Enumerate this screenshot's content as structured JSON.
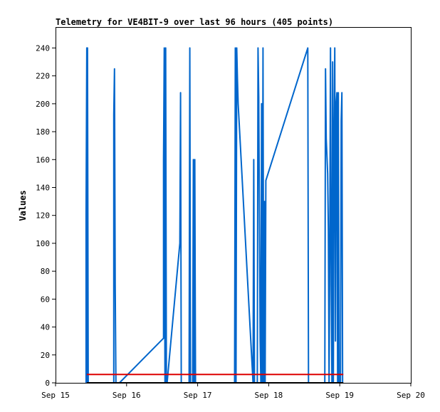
{
  "chart_data": {
    "type": "line",
    "title": "Telemetry for VE4BIT-9 over last 96 hours (405 points)",
    "xlabel": "",
    "ylabel": "Values",
    "x_ticks": [
      "Sep 15",
      "Sep 16",
      "Sep 17",
      "Sep 18",
      "Sep 19",
      "Sep 20"
    ],
    "xlim": [
      0,
      5
    ],
    "ylim": [
      0,
      255
    ],
    "y_ticks": [
      0,
      20,
      40,
      60,
      80,
      100,
      120,
      140,
      160,
      180,
      200,
      220,
      240
    ],
    "grid": false,
    "legend": "none",
    "series": [
      {
        "color": "#0066cc",
        "points": [
          [
            0.43,
            0
          ],
          [
            0.43,
            120
          ],
          [
            0.44,
            240
          ],
          [
            0.45,
            0
          ],
          [
            0.45,
            240
          ],
          [
            0.46,
            0
          ],
          [
            0.82,
            0
          ],
          [
            0.82,
            192
          ],
          [
            0.83,
            225
          ],
          [
            0.84,
            70
          ],
          [
            0.85,
            0
          ],
          [
            0.9,
            0
          ],
          [
            1.52,
            32
          ],
          [
            1.52,
            160
          ],
          [
            1.53,
            240
          ],
          [
            1.54,
            0
          ],
          [
            1.55,
            240
          ],
          [
            1.56,
            0
          ],
          [
            1.57,
            0
          ],
          [
            1.75,
            100
          ],
          [
            1.76,
            208
          ],
          [
            1.77,
            0
          ],
          [
            1.88,
            0
          ],
          [
            1.89,
            240
          ],
          [
            1.9,
            0
          ],
          [
            1.93,
            0
          ],
          [
            1.94,
            160
          ],
          [
            1.95,
            0
          ],
          [
            1.96,
            160
          ],
          [
            1.97,
            0
          ],
          [
            2.52,
            0
          ],
          [
            2.53,
            240
          ],
          [
            2.54,
            0
          ],
          [
            2.55,
            240
          ],
          [
            2.56,
            218
          ],
          [
            2.57,
            200
          ],
          [
            2.78,
            0
          ],
          [
            2.79,
            160
          ],
          [
            2.8,
            0
          ],
          [
            2.84,
            0
          ],
          [
            2.85,
            240
          ],
          [
            2.86,
            205
          ],
          [
            2.88,
            30
          ],
          [
            2.89,
            0
          ],
          [
            2.9,
            200
          ],
          [
            2.91,
            0
          ],
          [
            2.92,
            240
          ],
          [
            2.93,
            0
          ],
          [
            2.94,
            130
          ],
          [
            2.95,
            0
          ],
          [
            2.96,
            145
          ],
          [
            3.55,
            240
          ],
          [
            3.56,
            0
          ],
          [
            3.79,
            0
          ],
          [
            3.8,
            225
          ],
          [
            3.81,
            175
          ],
          [
            3.83,
            150
          ],
          [
            3.84,
            110
          ],
          [
            3.85,
            0
          ],
          [
            3.86,
            100
          ],
          [
            3.87,
            240
          ],
          [
            3.88,
            70
          ],
          [
            3.89,
            0
          ],
          [
            3.9,
            230
          ],
          [
            3.91,
            0
          ],
          [
            3.92,
            175
          ],
          [
            3.93,
            240
          ],
          [
            3.94,
            30
          ],
          [
            3.95,
            200
          ],
          [
            3.96,
            208
          ],
          [
            3.97,
            0
          ],
          [
            3.98,
            208
          ],
          [
            3.99,
            0
          ],
          [
            4.01,
            0
          ],
          [
            4.02,
            188
          ],
          [
            4.03,
            208
          ],
          [
            4.04,
            0
          ]
        ]
      },
      {
        "color": "#dd0000",
        "points": [
          [
            0.44,
            6
          ],
          [
            4.05,
            6
          ]
        ]
      },
      {
        "color": "#000000",
        "points": [
          [
            0.44,
            0
          ],
          [
            4.05,
            0
          ]
        ]
      }
    ]
  }
}
